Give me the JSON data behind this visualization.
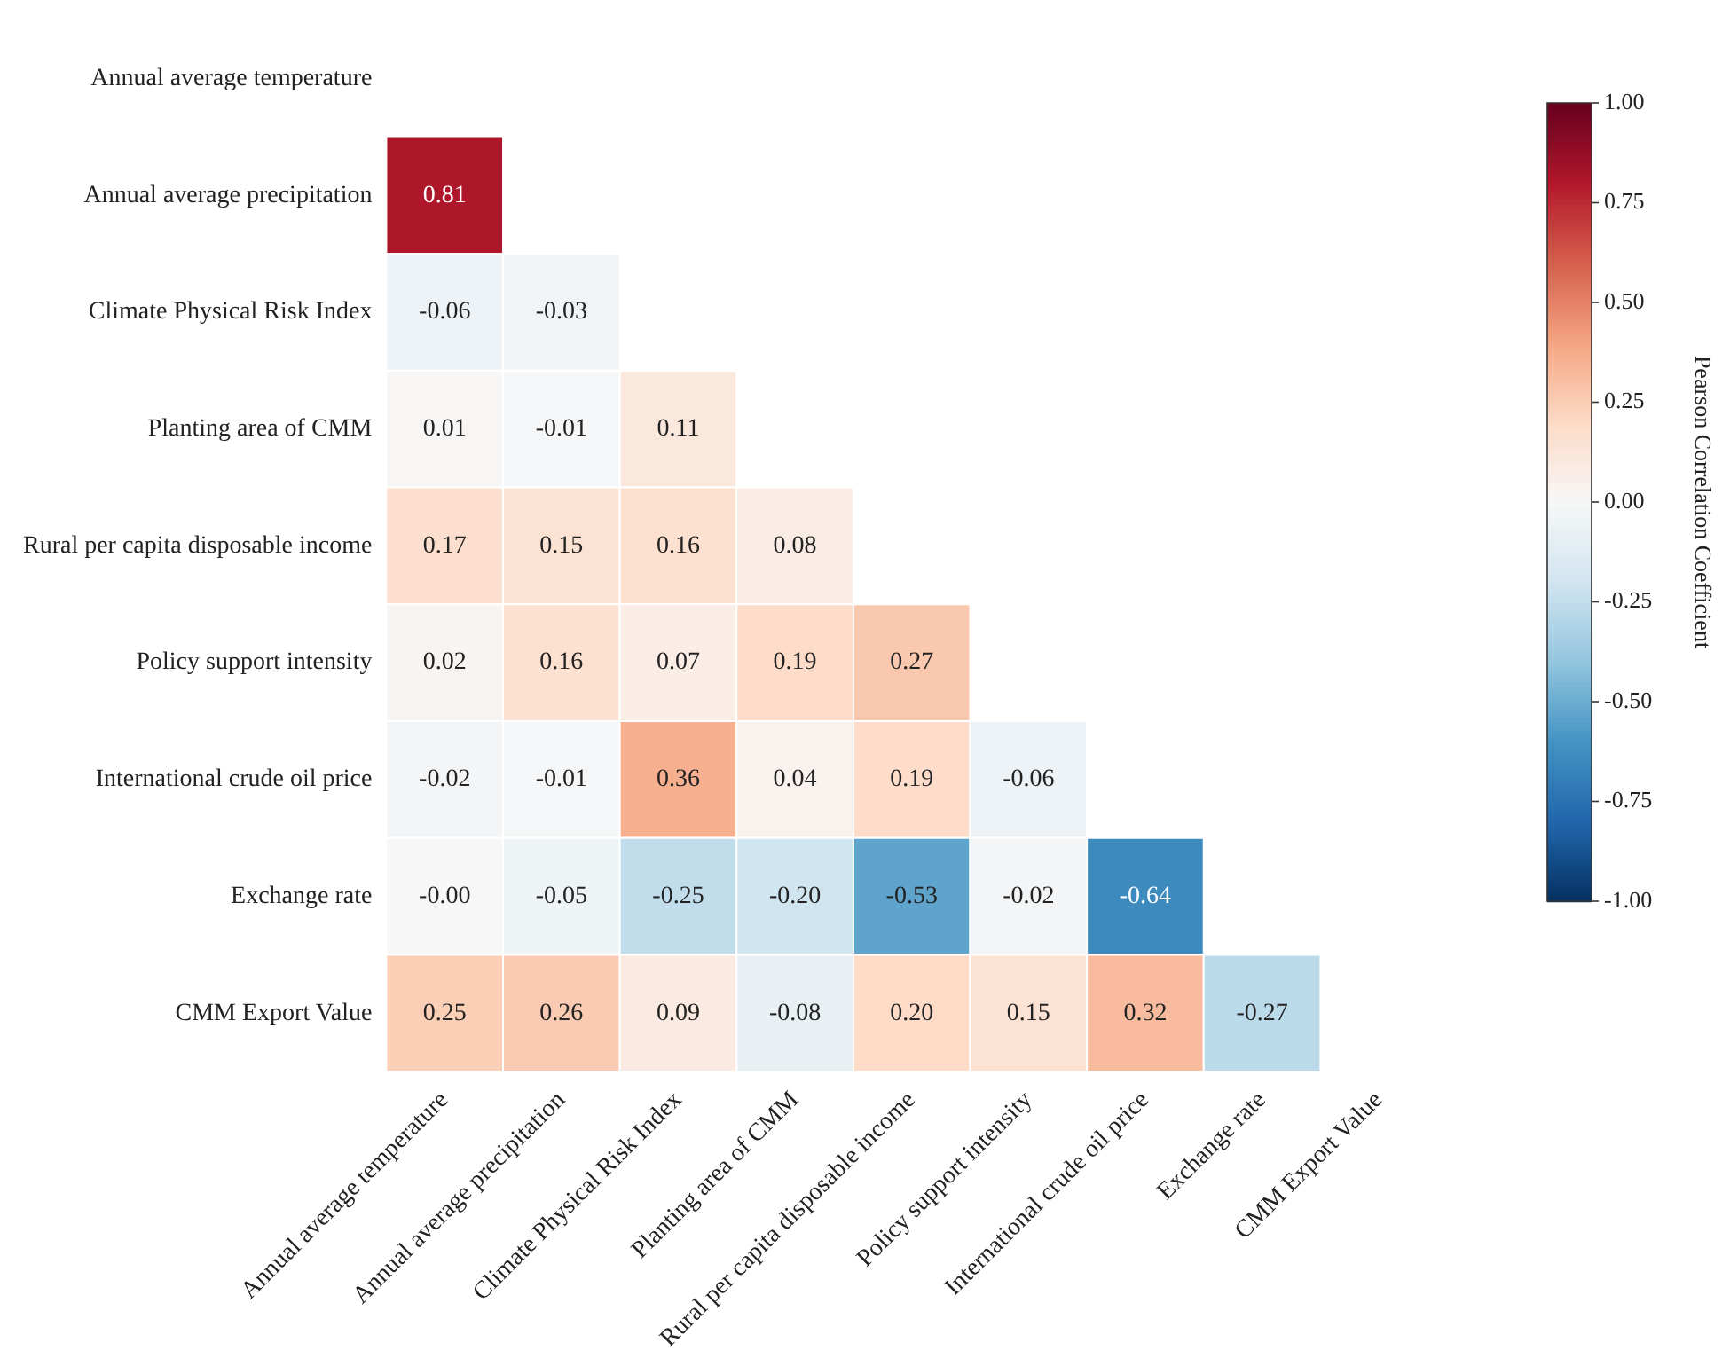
{
  "chart_data": {
    "type": "heatmap",
    "categories": [
      "Annual average temperature",
      "Annual average precipitation",
      "Climate Physical Risk Index",
      "Planting area of CMM",
      "Rural per capita disposable income",
      "Policy support intensity",
      "International crude oil price",
      "Exchange rate",
      "CMM Export Value"
    ],
    "y_categories": [
      "Annual average temperature",
      "Annual average precipitation",
      "Climate Physical Risk Index",
      "Planting area of CMM",
      "Rural per capita disposable income",
      "Policy support intensity",
      "International crude oil price",
      "Exchange rate",
      "CMM Export Value"
    ],
    "cells": [
      [
        null,
        null,
        null,
        null,
        null,
        null,
        null,
        null,
        null
      ],
      [
        0.81,
        null,
        null,
        null,
        null,
        null,
        null,
        null,
        null
      ],
      [
        -0.06,
        -0.03,
        null,
        null,
        null,
        null,
        null,
        null,
        null
      ],
      [
        0.01,
        -0.01,
        0.11,
        null,
        null,
        null,
        null,
        null,
        null
      ],
      [
        0.17,
        0.15,
        0.16,
        0.08,
        null,
        null,
        null,
        null,
        null
      ],
      [
        0.02,
        0.16,
        0.07,
        0.19,
        0.27,
        null,
        null,
        null,
        null
      ],
      [
        -0.02,
        -0.01,
        0.36,
        0.04,
        0.19,
        -0.06,
        null,
        null,
        null
      ],
      [
        0,
        -0.05,
        -0.25,
        -0.2,
        -0.53,
        -0.02,
        -0.64,
        null,
        null
      ],
      [
        0.25,
        0.26,
        0.09,
        -0.08,
        0.2,
        0.15,
        0.32,
        -0.27,
        null
      ]
    ],
    "cell_labels": [
      [
        null,
        null,
        null,
        null,
        null,
        null,
        null,
        null,
        null
      ],
      [
        "0.81",
        null,
        null,
        null,
        null,
        null,
        null,
        null,
        null
      ],
      [
        "-0.06",
        "-0.03",
        null,
        null,
        null,
        null,
        null,
        null,
        null
      ],
      [
        "0.01",
        "-0.01",
        "0.11",
        null,
        null,
        null,
        null,
        null,
        null
      ],
      [
        "0.17",
        "0.15",
        "0.16",
        "0.08",
        null,
        null,
        null,
        null,
        null
      ],
      [
        "0.02",
        "0.16",
        "0.07",
        "0.19",
        "0.27",
        null,
        null,
        null,
        null
      ],
      [
        "-0.02",
        "-0.01",
        "0.36",
        "0.04",
        "0.19",
        "-0.06",
        null,
        null,
        null
      ],
      [
        "-0.00",
        "-0.05",
        "-0.25",
        "-0.20",
        "-0.53",
        "-0.02",
        "-0.64",
        null,
        null
      ],
      [
        "0.25",
        "0.26",
        "0.09",
        "-0.08",
        "0.20",
        "0.15",
        "0.32",
        "-0.27",
        null
      ]
    ],
    "clim": [
      -1,
      1
    ],
    "cticks": [
      {
        "value": -1,
        "label": "-1.00"
      },
      {
        "value": -0.75,
        "label": "-0.75"
      },
      {
        "value": -0.5,
        "label": "-0.50"
      },
      {
        "value": -0.25,
        "label": "-0.25"
      },
      {
        "value": 0,
        "label": "0.00"
      },
      {
        "value": 0.25,
        "label": "0.25"
      },
      {
        "value": 0.5,
        "label": "0.50"
      },
      {
        "value": 0.75,
        "label": "0.75"
      },
      {
        "value": 1,
        "label": "1.00"
      }
    ],
    "clabel": "Pearson Correlation Coefficient",
    "grid": false,
    "legend": false
  }
}
